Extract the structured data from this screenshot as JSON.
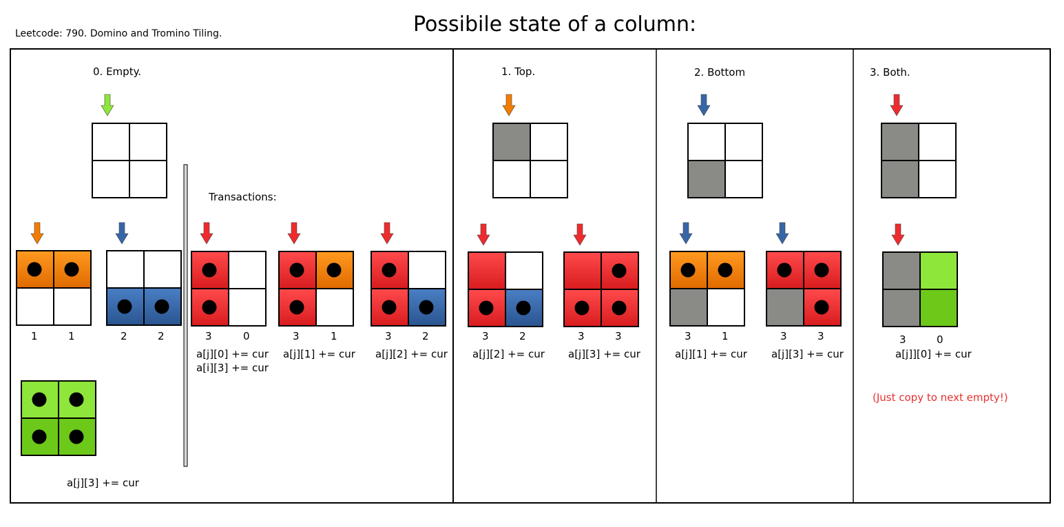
{
  "title": "Possibile state of a column:",
  "subtitle": "Leetcode: 790. Domino and Tromino Tiling.",
  "colors": {
    "orange": "#f47c00",
    "blue": "#3666a8",
    "red": "#ef2b2d",
    "green_light": "#8ee63a",
    "green_dark": "#6cc919",
    "gray": "#8a8b86",
    "white": "#ffffff",
    "dot": "#000000"
  },
  "panels": [
    {
      "heading": "0. Empty.",
      "section_label": "Transactions:",
      "tiles": [
        {
          "numbers": [
            "1",
            "1"
          ]
        },
        {
          "numbers": [
            "2",
            "2"
          ]
        },
        {
          "numbers": [
            "3",
            "0"
          ],
          "formula": "a[j][0] += cur",
          "formula2": "a[i][3] += cur"
        },
        {
          "numbers": [
            "3",
            "1"
          ],
          "formula": "a[j][1] += cur"
        },
        {
          "numbers": [
            "3",
            "2"
          ],
          "formula": "a[j][2] += cur"
        },
        {
          "formula": "a[j][3] += cur"
        }
      ]
    },
    {
      "heading": "1. Top.",
      "tiles": [
        {
          "numbers": [
            "3",
            "2"
          ],
          "formula": "a[j][2] += cur"
        },
        {
          "numbers": [
            "3",
            "3"
          ],
          "formula": "a[j][3] += cur"
        }
      ]
    },
    {
      "heading": "2. Bottom",
      "tiles": [
        {
          "numbers": [
            "3",
            "1"
          ],
          "formula": "a[j][1] += cur"
        },
        {
          "numbers": [
            "3",
            "3"
          ],
          "formula": "a[j][3] += cur"
        }
      ]
    },
    {
      "heading": "3. Both.",
      "tiles": [
        {
          "numbers": [
            "3",
            "0"
          ],
          "formula": "a[j]][0] += cur"
        }
      ],
      "note": "(Just copy to next empty!)"
    }
  ]
}
